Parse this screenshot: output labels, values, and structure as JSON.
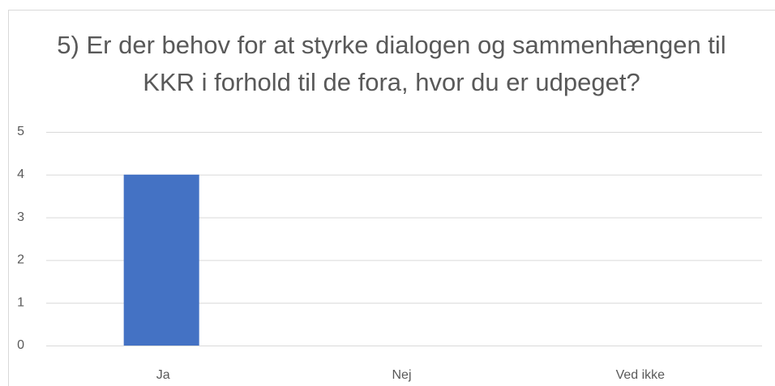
{
  "chart_data": {
    "type": "bar",
    "title": "5) Er der behov for at styrke dialogen og sammenhængen til KKR i forhold til de fora, hvor du er udpeget?",
    "categories": [
      "Ja",
      "Nej",
      "Ved ikke"
    ],
    "values": [
      4,
      0,
      0
    ],
    "color": "#4472c4",
    "ylim": [
      0,
      5
    ],
    "yticks": [
      0,
      1,
      2,
      3,
      4,
      5
    ],
    "grid": true
  }
}
